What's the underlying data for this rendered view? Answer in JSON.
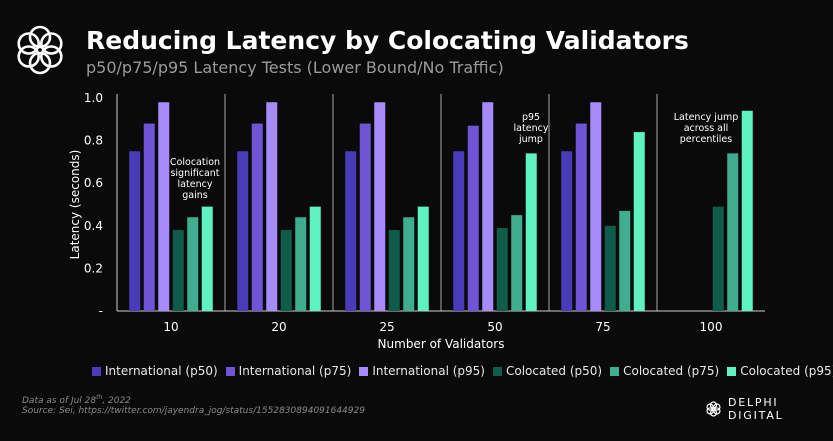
{
  "header": {
    "title": "Reducing Latency by Colocating Validators",
    "subtitle": "p50/p75/p95 Latency Tests (Lower Bound/No Traffic)"
  },
  "chart_data": {
    "type": "bar",
    "title": "Reducing Latency by Colocating Validators",
    "subtitle": "p50/p75/p95 Latency Tests (Lower Bound/No Traffic)",
    "xlabel": "Number of Validators",
    "ylabel": "Latency (seconds)",
    "categories": [
      "10",
      "20",
      "25",
      "50",
      "75",
      "100"
    ],
    "ylim": [
      0,
      1.0
    ],
    "yticks": [
      {
        "value": 0,
        "label": "-"
      },
      {
        "value": 0.2,
        "label": "0.2"
      },
      {
        "value": 0.4,
        "label": "0.4"
      },
      {
        "value": 0.6,
        "label": "0.6"
      },
      {
        "value": 0.8,
        "label": "0.8"
      },
      {
        "value": 1.0,
        "label": "1.0"
      }
    ],
    "series": [
      {
        "name": "International (p50)",
        "color": "#4a3bb8",
        "values": [
          0.75,
          0.75,
          0.75,
          0.75,
          0.75,
          null
        ]
      },
      {
        "name": "International (p75)",
        "color": "#6f55d6",
        "values": [
          0.88,
          0.88,
          0.88,
          0.87,
          0.88,
          null
        ]
      },
      {
        "name": "International (p95)",
        "color": "#a78bfa",
        "values": [
          0.98,
          0.98,
          0.98,
          0.98,
          0.98,
          null
        ]
      },
      {
        "name": "Colocated (p50)",
        "color": "#0f5c4b",
        "values": [
          0.38,
          0.38,
          0.38,
          0.39,
          0.4,
          0.49
        ]
      },
      {
        "name": "Colocated (p75)",
        "color": "#3fae8f",
        "values": [
          0.44,
          0.44,
          0.44,
          0.45,
          0.47,
          0.74
        ]
      },
      {
        "name": "Colocated (p95)",
        "color": "#5ef2c1",
        "values": [
          0.49,
          0.49,
          0.49,
          0.74,
          0.84,
          0.94
        ]
      }
    ],
    "annotations": [
      {
        "category": "10",
        "lines": [
          "Colocation",
          "significant",
          "latency",
          "gains"
        ]
      },
      {
        "category": "50",
        "lines": [
          "p95",
          "latency",
          "jump"
        ]
      },
      {
        "category": "100",
        "lines": [
          "Latency jump",
          "across all",
          "percentiles"
        ]
      }
    ],
    "grid": false,
    "legend_position": "bottom"
  },
  "footer": {
    "note_prefix": "Data as of Jul 28",
    "note_sup": "th",
    "note_suffix": ", 2022",
    "source": "Source: Sei, https://twitter.com/jayendra_jog/status/1552830894091644929",
    "brand": "DELPHI DIGITAL"
  },
  "colors": {
    "background": "#0a0a0a",
    "axis": "#cfcfcf",
    "text": "#ffffff",
    "muted": "#9a9a9a"
  },
  "icons": {
    "logo": "delphi-flower-icon",
    "brand": "delphi-flower-icon"
  }
}
